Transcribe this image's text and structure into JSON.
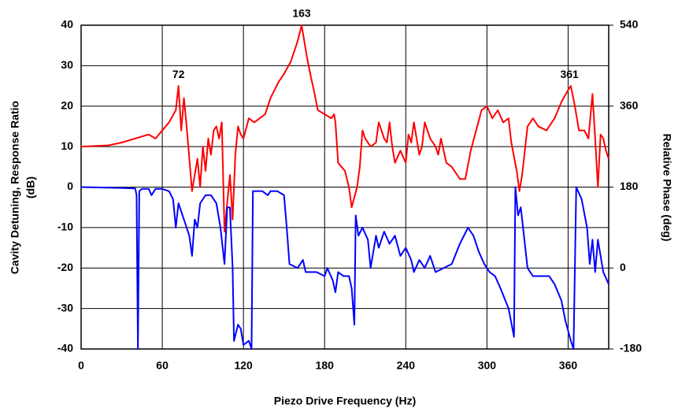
{
  "chart_data": {
    "type": "line",
    "xlabel": "Piezo Drive Frequency (Hz)",
    "ylabel": [
      "Cavity Detuning, Response Ratio",
      "(dB)"
    ],
    "y2label": "Relative Phase (deg)",
    "xlim": [
      0,
      390
    ],
    "xticks": [
      0,
      60,
      120,
      180,
      240,
      300,
      360
    ],
    "ylim": [
      -40,
      40
    ],
    "yticks": [
      -40,
      -30,
      -20,
      -10,
      0,
      10,
      20,
      30,
      40
    ],
    "y2lim": [
      -180,
      540
    ],
    "y2ticks": [
      -180,
      0,
      180,
      360,
      540
    ],
    "grid": true,
    "annotations": [
      {
        "text": "163",
        "x": 163,
        "y": 40
      },
      {
        "text": "72",
        "x": 72,
        "y": 25
      },
      {
        "text": "361",
        "x": 361,
        "y": 25
      }
    ],
    "series": [
      {
        "color": "#ff0000",
        "x": [
          0,
          20,
          30,
          40,
          50,
          55,
          60,
          65,
          70,
          72,
          74,
          76,
          78,
          82,
          84,
          86,
          88,
          90,
          92,
          94,
          96,
          98,
          100,
          102,
          104,
          106,
          110,
          112,
          114,
          116,
          118,
          120,
          124,
          128,
          132,
          136,
          140,
          146,
          150,
          155,
          158,
          160,
          163,
          165,
          167,
          170,
          172,
          175,
          180,
          185,
          187,
          188,
          190,
          195,
          198,
          200,
          204,
          206,
          208,
          210,
          214,
          218,
          220,
          224,
          226,
          228,
          230,
          232,
          236,
          240,
          242,
          244,
          246,
          250,
          252,
          254,
          258,
          262,
          264,
          266,
          270,
          274,
          280,
          284,
          288,
          292,
          296,
          300,
          304,
          308,
          312,
          316,
          318,
          322,
          324,
          326,
          330,
          334,
          338,
          344,
          350,
          355,
          360,
          362,
          365,
          368,
          372,
          375,
          378,
          380,
          382,
          384,
          386,
          388,
          390
        ],
        "values": [
          10,
          10.3,
          11,
          12,
          13,
          12,
          14,
          16,
          19,
          25,
          14,
          22,
          15,
          -1,
          3,
          7,
          0,
          10,
          4,
          12,
          8,
          14,
          15,
          12,
          16,
          -11,
          3,
          -8,
          8,
          15,
          13,
          12,
          17,
          16,
          17,
          18,
          22,
          26,
          28,
          31,
          34,
          36,
          40,
          36,
          32,
          27,
          24,
          19,
          18,
          17,
          18,
          16,
          6,
          4,
          0,
          -5,
          0,
          5,
          14,
          12,
          10,
          11,
          16,
          12,
          11,
          16,
          10,
          6,
          9,
          6,
          13,
          11,
          16,
          8,
          10,
          16,
          12,
          10,
          8,
          12,
          6,
          5,
          2,
          2,
          9,
          14,
          19,
          20,
          17,
          19,
          16,
          17,
          11,
          4,
          -1,
          3,
          15,
          17,
          15,
          14,
          17,
          21,
          24,
          25,
          20,
          14,
          14,
          12,
          23,
          12,
          0,
          13,
          12,
          9,
          7
        ]
      },
      {
        "color": "#0000ff",
        "axis": "y2",
        "x": [
          0,
          30,
          40,
          41,
          42,
          43,
          45,
          50,
          52,
          55,
          60,
          65,
          68,
          70,
          72,
          76,
          80,
          82,
          84,
          86,
          88,
          92,
          96,
          100,
          103,
          106,
          108,
          110,
          112,
          113,
          116,
          118,
          120,
          124,
          126,
          127,
          130,
          134,
          138,
          140,
          145,
          150,
          152,
          154,
          160,
          164,
          166,
          174,
          180,
          182,
          186,
          188,
          190,
          194,
          198,
          200,
          202,
          203,
          205,
          208,
          212,
          214,
          218,
          220,
          224,
          228,
          232,
          236,
          240,
          244,
          246,
          250,
          254,
          258,
          262,
          268,
          274,
          280,
          286,
          290,
          294,
          298,
          302,
          306,
          310,
          316,
          320,
          321,
          323,
          325,
          327,
          330,
          334,
          340,
          346,
          350,
          355,
          358,
          362,
          364,
          366,
          370,
          374,
          376,
          378,
          380,
          382,
          386,
          390
        ],
        "values": [
          180,
          178,
          177,
          162,
          -180,
          171,
          176,
          176,
          162,
          176,
          176,
          171,
          153,
          90,
          144,
          108,
          72,
          27,
          108,
          90,
          144,
          162,
          162,
          144,
          90,
          9,
          135,
          135,
          0,
          -162,
          -126,
          -135,
          -171,
          -162,
          -180,
          171,
          171,
          171,
          162,
          171,
          171,
          162,
          90,
          9,
          0,
          18,
          -9,
          -9,
          -18,
          0,
          -27,
          -54,
          -9,
          -18,
          -18,
          -45,
          -126,
          117,
          72,
          90,
          63,
          0,
          72,
          45,
          81,
          54,
          72,
          27,
          45,
          18,
          -9,
          18,
          0,
          27,
          -9,
          0,
          9,
          54,
          90,
          72,
          36,
          9,
          -9,
          -18,
          -45,
          -90,
          -153,
          180,
          117,
          135,
          81,
          0,
          -18,
          -18,
          -18,
          -36,
          -72,
          -117,
          -162,
          -180,
          180,
          153,
          90,
          9,
          63,
          -9,
          63,
          -9,
          -36
        ]
      }
    ]
  }
}
